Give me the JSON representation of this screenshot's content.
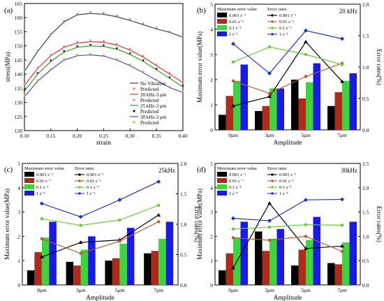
{
  "chart_data": [
    {
      "id": "a",
      "panel_label": "(a)",
      "type": "line",
      "xlabel": "strain",
      "ylabel": "stress(MPa)",
      "xlim": [
        0.1,
        0.4
      ],
      "ylim": [
        120,
        165
      ],
      "xticks": [
        "0.10",
        "0.15",
        "0.20",
        "0.25",
        "0.30",
        "0.35",
        "0.40"
      ],
      "yticks": [
        "120",
        "125",
        "130",
        "135",
        "140",
        "145",
        "150",
        "155",
        "160",
        "165"
      ],
      "x": [
        0.1,
        0.125,
        0.15,
        0.175,
        0.2,
        0.225,
        0.25,
        0.275,
        0.3,
        0.325,
        0.35,
        0.375,
        0.4
      ],
      "series": [
        {
          "name": "No Vibration",
          "style": "line",
          "color": "#4a3b36",
          "values": [
            141.0,
            148.0,
            154.0,
            158.5,
            161.0,
            161.5,
            161.2,
            160.3,
            159.0,
            157.5,
            156.0,
            154.8,
            153.0
          ]
        },
        {
          "name": "Predicted",
          "style": "dots",
          "color": "#b98a7a",
          "values": [
            141.5,
            148.4,
            154.4,
            158.9,
            161.4,
            162.0,
            161.7,
            160.8,
            159.5,
            158.0,
            156.5,
            155.1,
            153.3
          ]
        },
        {
          "name": "20 kHz-3 μm",
          "style": "line",
          "color": "#e0322f",
          "values": [
            136.0,
            142.0,
            146.5,
            149.5,
            151.0,
            151.5,
            151.3,
            150.3,
            148.5,
            146.0,
            143.0,
            140.0,
            137.0
          ]
        },
        {
          "name": "Predicted",
          "style": "dots",
          "color": "#e88a80",
          "values": [
            136.4,
            142.4,
            146.9,
            149.9,
            151.5,
            152.0,
            151.8,
            150.8,
            149.0,
            146.5,
            143.5,
            140.5,
            137.5
          ]
        },
        {
          "name": "25 kHz-3 μm",
          "style": "line",
          "color": "#2aa02a",
          "values": [
            134.0,
            140.0,
            144.5,
            147.8,
            149.5,
            150.0,
            149.8,
            148.8,
            147.0,
            144.5,
            141.5,
            138.5,
            135.5
          ]
        },
        {
          "name": "Predicted",
          "style": "dots",
          "color": "#1a1a1a",
          "values": [
            134.4,
            140.4,
            144.9,
            148.2,
            149.9,
            150.4,
            150.2,
            149.2,
            147.4,
            144.9,
            141.9,
            138.9,
            135.9
          ]
        },
        {
          "name": "30 kHz-3 μm",
          "style": "line",
          "color": "#4a4ac8",
          "values": [
            132.0,
            137.5,
            141.5,
            145.0,
            146.5,
            146.8,
            146.4,
            145.0,
            143.0,
            140.5,
            137.8,
            135.2,
            133.5
          ]
        },
        {
          "name": "Predicted",
          "style": "dots",
          "color": "#e0b030",
          "values": [
            132.4,
            137.9,
            141.9,
            145.4,
            146.9,
            147.2,
            146.8,
            145.4,
            143.4,
            140.9,
            138.2,
            135.6,
            133.9
          ]
        }
      ]
    },
    {
      "id": "b",
      "panel_label": "(b)",
      "freq_label": "20 kHz",
      "type": "bar",
      "xlabel": "Amplitude",
      "ylabel": "Maximum error value(MPa)",
      "ylabel2": "Error rates(%)",
      "categories": [
        "0μm",
        "3μm",
        "5μm",
        "7μm"
      ],
      "ylim": [
        0,
        5
      ],
      "yticks": [
        "0",
        "1",
        "2",
        "3",
        "4",
        "5"
      ],
      "ylim2": [
        0,
        2.0
      ],
      "yticks2": [
        "0.0",
        "0.5",
        "1.0",
        "1.5",
        "2.0"
      ],
      "legend_bar_title": "Maximum error value",
      "legend_line_title": "Error rates",
      "series_names": [
        "0.001 s⁻¹",
        "0.01 s⁻¹",
        "0.1 s⁻¹",
        "1 s⁻¹"
      ],
      "bars": [
        [
          0.6,
          0.75,
          2.0,
          0.95
        ],
        [
          1.35,
          0.95,
          1.25,
          1.5
        ],
        [
          1.95,
          1.65,
          1.9,
          1.95
        ],
        [
          2.6,
          1.65,
          2.65,
          2.25
        ]
      ],
      "rates": [
        [
          0.38,
          0.53,
          1.4,
          0.77
        ],
        [
          0.78,
          0.58,
          0.85,
          1.06
        ],
        [
          1.08,
          1.32,
          1.2,
          1.04
        ],
        [
          1.37,
          0.9,
          1.58,
          1.45
        ]
      ]
    },
    {
      "id": "c",
      "panel_label": "(c)",
      "freq_label": "25kHz",
      "type": "bar",
      "xlabel": "Amplitude",
      "ylabel": "Maximum error value(MPa)",
      "ylabel2": "Error rates(%)",
      "categories": [
        "0μm",
        "3μm",
        "5μm",
        "7μm"
      ],
      "ylim": [
        0,
        5
      ],
      "yticks": [
        "0",
        "1",
        "2",
        "3",
        "4",
        "5"
      ],
      "ylim2": [
        0,
        2.0
      ],
      "yticks2": [
        "0.0",
        "0.5",
        "1.0",
        "1.5",
        "2.0"
      ],
      "legend_bar_title": "Maximum error value",
      "legend_line_title": "Error rates",
      "series_names": [
        "0.001 s⁻¹",
        "0.01 s⁻¹",
        "0.1 s⁻¹",
        "1 s⁻¹"
      ],
      "bars": [
        [
          0.6,
          0.95,
          1.0,
          1.3
        ],
        [
          1.35,
          0.8,
          1.1,
          1.4
        ],
        [
          1.95,
          1.45,
          1.7,
          1.9
        ],
        [
          2.6,
          2.0,
          2.35,
          2.6
        ]
      ],
      "rates": [
        [
          0.46,
          0.7,
          0.74,
          1.15
        ],
        [
          0.76,
          0.52,
          0.72,
          1.04
        ],
        [
          1.09,
          0.98,
          1.07,
          1.31
        ],
        [
          1.34,
          1.12,
          1.4,
          1.7
        ]
      ]
    },
    {
      "id": "d",
      "panel_label": "(d)",
      "freq_label": "30kHz",
      "type": "bar",
      "xlabel": "Amplitude",
      "ylabel": "Maximum error value(MPa)",
      "ylabel2": "Error rates(%)",
      "categories": [
        "0μm",
        "3μm",
        "5μm",
        "7μm"
      ],
      "ylim": [
        0,
        5
      ],
      "yticks": [
        "0",
        "1",
        "2",
        "3",
        "4",
        "5"
      ],
      "ylim2": [
        0,
        2.5
      ],
      "yticks2": [
        "0.0",
        "0.5",
        "1.0",
        "1.5",
        "2.0",
        "2.5"
      ],
      "legend_bar_title": "Maximum error value",
      "legend_line_title": "Error rates",
      "series_names": [
        "0.001 s⁻¹",
        "0.01 s⁻¹",
        "0.1 s⁻¹",
        "1 s⁻¹"
      ],
      "bars": [
        [
          0.6,
          2.2,
          0.8,
          0.9
        ],
        [
          1.3,
          1.4,
          1.45,
          0.85
        ],
        [
          1.95,
          1.9,
          1.85,
          1.75
        ],
        [
          2.6,
          2.3,
          2.8,
          2.6
        ]
      ],
      "rates": [
        [
          0.35,
          1.68,
          0.75,
          0.8
        ],
        [
          0.97,
          0.92,
          1.0,
          0.69
        ],
        [
          1.15,
          1.19,
          1.24,
          1.23
        ],
        [
          1.37,
          1.32,
          1.75,
          1.76
        ]
      ]
    }
  ],
  "colors": {
    "bar_series": [
      "#000000",
      "#b02a1a",
      "#3cd63c",
      "#1a1ae6"
    ],
    "line_series": [
      "#000000",
      "#b85a30",
      "#66cc33",
      "#2233cc"
    ]
  }
}
